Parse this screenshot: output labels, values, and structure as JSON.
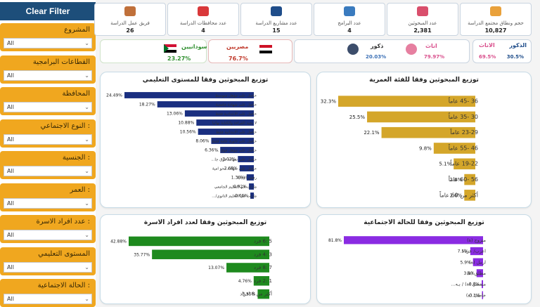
{
  "sidebar": {
    "clear_filter": "Clear Filter",
    "filters": [
      {
        "label": "المشروع",
        "value": "All"
      },
      {
        "label": "القطاعات البرامجية",
        "value": "All"
      },
      {
        "label": "المحافظة",
        "value": "All"
      },
      {
        "label": ": النوع الاجتماعي",
        "value": "All"
      },
      {
        "label": ": الجنسية",
        "value": "All"
      },
      {
        "label": ": العمر",
        "value": "All"
      },
      {
        "label": ": عدد افراد الاسرة",
        "value": "All"
      },
      {
        "label": "المستوى التعليمي",
        "value": "All"
      },
      {
        "label": ": الحالة الاجتماعية",
        "value": "All"
      }
    ]
  },
  "kpis": [
    {
      "label": "حجم ونطاق مجتمع الدراسة",
      "value": "10,827",
      "icon": "puzzle-icon",
      "color": "#e9a13b"
    },
    {
      "label": "عدد المبحوثين",
      "value": "2,381",
      "icon": "people-icon",
      "color": "#d94f6c"
    },
    {
      "label": "عدد البرامج",
      "value": "4",
      "icon": "folders-icon",
      "color": "#3a7bbf"
    },
    {
      "label": "عدد مشاريع الدراسة",
      "value": "15",
      "icon": "gear-icon",
      "color": "#1f4d8a"
    },
    {
      "label": "عدد محافظات الدراسة",
      "value": "4",
      "icon": "map-pin-icon",
      "color": "#d9383a"
    },
    {
      "label": "فريق عمل الدراسة",
      "value": "26",
      "icon": "team-icon",
      "color": "#c0703a"
    }
  ],
  "gender_summary": {
    "male_label": "الذكور",
    "female_label": "الاناث",
    "male_pct": "30.5%",
    "female_pct": "69.5%"
  },
  "gender_icons": {
    "female_label": "اناث",
    "female_pct": "79.97%",
    "male_label": "ذكور",
    "male_pct": "20.03%"
  },
  "nationality": {
    "egypt_label": "مصريين",
    "egypt_pct": "76.7%",
    "sudan_label": "سودانيين",
    "sudan_pct": "23.27%"
  },
  "chart_data": [
    {
      "type": "bar",
      "title": "توزيع المبحوثين وفقا للفئة العمرية",
      "categories": [
        "36 -45 عاماً",
        "30 -35 عاماً",
        "23-29 عاماً",
        "46 -55 عاماً",
        "19-22 عاماً",
        "56 -60 عاماً",
        "أكثر من 60 عاماً"
      ],
      "values": [
        32.3,
        25.5,
        22.1,
        9.8,
        5.1,
        2.6,
        2.6
      ],
      "labels": [
        "32.3%",
        "25.5%",
        "22.1%",
        "9.8%",
        "5.1%",
        "2.6%",
        "2.6%"
      ],
      "color": "#d4a62a"
    },
    {
      "type": "bar",
      "title": "توزيع المبحوثين وفقا للمستوى التعليمي",
      "categories": [
        "حاصل على مؤهل متوسط",
        "حاصل على شهادة جامعية",
        "حاصل على الاعدادية فقط",
        "لا يجيد القراءة والكتابة نهائيا",
        "حاصل على الابتدائية فقط",
        "حاصل على ثانوية عامة فقط",
        "حاصل على مؤهل فوق ...",
        "حاصل على شهادة فوق جا...",
        "حاصل على شهادة محو امية",
        "رفض الإجابة",
        "مازلت في التعليم الجامعي",
        "مازلت في التعليم الثانوي/..."
      ],
      "values": [
        24.49,
        18.27,
        13.06,
        10.88,
        10.56,
        8.06,
        6.36,
        3.02,
        2.69,
        1.36,
        0.92,
        0.66
      ],
      "labels": [
        "24.49%",
        "18.27%",
        "13.06%",
        "10.88%",
        "10.56%",
        "8.06%",
        "6.36%",
        "3.02%",
        "2.69%",
        "1.36%",
        "0.92%",
        "0.66%"
      ],
      "color": "#1a2f80"
    },
    {
      "type": "bar",
      "title": "توزيع المبحوثين وفقا للحالة الاجتماعية",
      "categories": [
        "متزوج (ة)",
        "اعزب/ عزباء",
        "ارمل (ة)",
        "مطلق (ة)",
        "منفصل (ة) / بـه...",
        "خاطب (ة)"
      ],
      "values": [
        81.8,
        7.5,
        5.9,
        3.8,
        0.8,
        0.3
      ],
      "labels": [
        "81.8%",
        "7.5%",
        "5.9%",
        "3.8%",
        "0.8%",
        "0.3%"
      ],
      "color": "#8a2be2"
    },
    {
      "type": "bar",
      "title": "توزيع المبحوثين وفقا لعدد افراد الاسرة",
      "categories": [
        "5 :6 فرد",
        "3 :4 فرد",
        "7 :8 فرد",
        "1 :2 فرد",
        "أكثر من 8 افراد"
      ],
      "values": [
        42.88,
        35.77,
        13.07,
        4.76,
        3.55
      ],
      "labels": [
        "42.88%",
        "35.77%",
        "13.07%",
        "4.76%",
        "3.55%"
      ],
      "color": "#1e8a1e"
    }
  ]
}
